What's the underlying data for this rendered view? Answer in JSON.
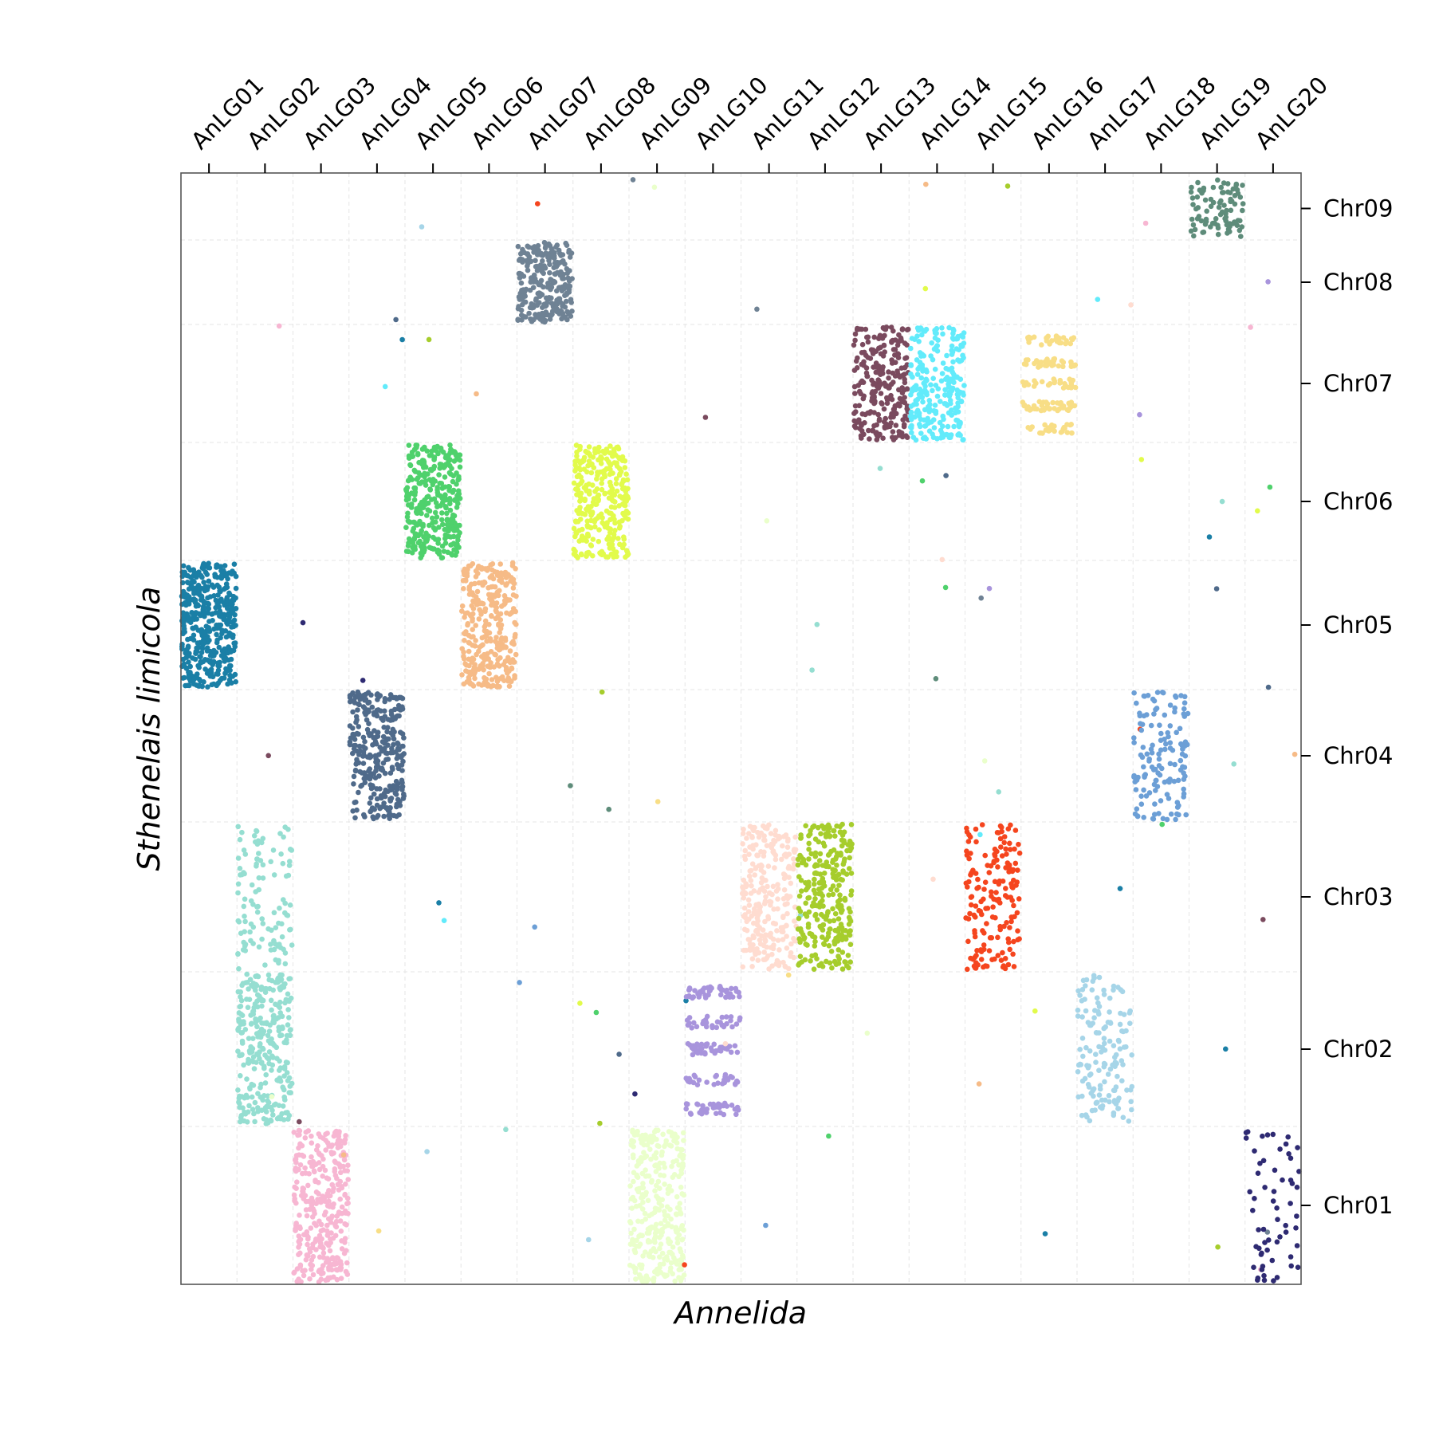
{
  "chart_data": {
    "type": "scatter",
    "title": "",
    "xlabel": "Annelida",
    "ylabel": "Sthenelais limicola",
    "x_categories": [
      "AnLG01",
      "AnLG02",
      "AnLG03",
      "AnLG04",
      "AnLG05",
      "AnLG06",
      "AnLG07",
      "AnLG08",
      "AnLG09",
      "AnLG10",
      "AnLG11",
      "AnLG12",
      "AnLG13",
      "AnLG14",
      "AnLG15",
      "AnLG16",
      "AnLG17",
      "AnLG18",
      "AnLG19",
      "AnLG20"
    ],
    "y_categories": [
      "Chr01",
      "Chr02",
      "Chr03",
      "Chr04",
      "Chr05",
      "Chr06",
      "Chr07",
      "Chr08",
      "Chr09"
    ],
    "x_axis_position": "top",
    "y_axis_position": "right",
    "grid": true,
    "legend": "none",
    "series": [
      {
        "x_group": "AnLG01",
        "y_group": "Chr05",
        "color": "#1a7fa6",
        "points": 420,
        "density": "dense"
      },
      {
        "x_group": "AnLG02",
        "y_group": "Chr02",
        "color": "#95ded1",
        "points": 300,
        "density": "dense"
      },
      {
        "x_group": "AnLG02",
        "y_group": "Chr03",
        "color": "#95ded1",
        "points": 110,
        "density": "sparse"
      },
      {
        "x_group": "AnLG03",
        "y_group": "Chr01",
        "color": "#f7b6d2",
        "points": 320,
        "density": "dense"
      },
      {
        "x_group": "AnLG04",
        "y_group": "Chr04",
        "color": "#4f6a8a",
        "points": 300,
        "density": "dense"
      },
      {
        "x_group": "AnLG05",
        "y_group": "Chr06",
        "color": "#4fd16c",
        "points": 330,
        "density": "dense"
      },
      {
        "x_group": "AnLG06",
        "y_group": "Chr05",
        "color": "#f6bb87",
        "points": 320,
        "density": "dense"
      },
      {
        "x_group": "AnLG07",
        "y_group": "Chr08",
        "color": "#6f8294",
        "points": 260,
        "density": "dense"
      },
      {
        "x_group": "AnLG08",
        "y_group": "Chr06",
        "color": "#e2fb4b",
        "points": 300,
        "density": "dense"
      },
      {
        "x_group": "AnLG09",
        "y_group": "Chr01",
        "color": "#eaffcb",
        "points": 320,
        "density": "dense"
      },
      {
        "x_group": "AnLG10",
        "y_group": "Chr02",
        "color": "#a894dc",
        "points": 180,
        "density": "banded"
      },
      {
        "x_group": "AnLG11",
        "y_group": "Chr03",
        "color": "#ffdcd0",
        "points": 260,
        "density": "dense"
      },
      {
        "x_group": "AnLG12",
        "y_group": "Chr03",
        "color": "#a6cd2c",
        "points": 280,
        "density": "dense"
      },
      {
        "x_group": "AnLG13",
        "y_group": "Chr07",
        "color": "#7a4a5e",
        "points": 250,
        "density": "dense"
      },
      {
        "x_group": "AnLG14",
        "y_group": "Chr07",
        "color": "#62ebfb",
        "points": 240,
        "density": "dense"
      },
      {
        "x_group": "AnLG15",
        "y_group": "Chr03",
        "color": "#f5451e",
        "points": 170,
        "density": "medium"
      },
      {
        "x_group": "AnLG16",
        "y_group": "Chr07",
        "color": "#f8de86",
        "points": 160,
        "density": "banded"
      },
      {
        "x_group": "AnLG17",
        "y_group": "Chr02",
        "color": "#a6d5e8",
        "points": 150,
        "density": "medium"
      },
      {
        "x_group": "AnLG18",
        "y_group": "Chr04",
        "color": "#6c9fd6",
        "points": 140,
        "density": "medium"
      },
      {
        "x_group": "AnLG19",
        "y_group": "Chr09",
        "color": "#5e8c7a",
        "points": 90,
        "density": "medium"
      },
      {
        "x_group": "AnLG20",
        "y_group": "Chr01",
        "color": "#2e2a72",
        "points": 60,
        "density": "sparse"
      }
    ]
  }
}
